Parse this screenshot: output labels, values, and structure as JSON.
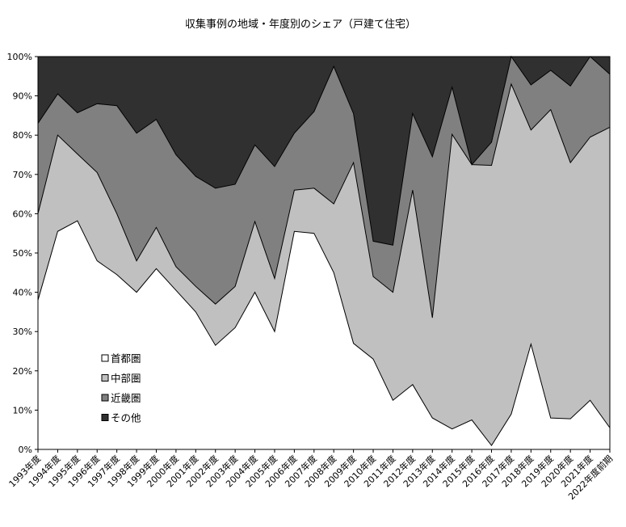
{
  "chart_data": {
    "type": "area",
    "stacked": true,
    "title": "収集事例の地域・年度別のシェア（戸建て住宅）",
    "xlabel": "",
    "ylabel": "",
    "ylim": [
      0,
      100
    ],
    "y_ticks": [
      "0%",
      "10%",
      "20%",
      "30%",
      "40%",
      "50%",
      "60%",
      "70%",
      "80%",
      "90%",
      "100%"
    ],
    "categories": [
      "1993年度",
      "1994年度",
      "1995年度",
      "1996年度",
      "1997年度",
      "1998年度",
      "1999年度",
      "2000年度",
      "2001年度",
      "2002年度",
      "2003年度",
      "2004年度",
      "2005年度",
      "2006年度",
      "2007年度",
      "2008年度",
      "2009年度",
      "2010年度",
      "2011年度",
      "2012年度",
      "2013年度",
      "2014年度",
      "2015年度",
      "2016年度",
      "2017年度",
      "2018年度",
      "2019年度",
      "2020年度",
      "2021年度",
      "2022年度前期"
    ],
    "grid": false,
    "legend_position": "bottom-left (inside plot)",
    "series": [
      {
        "name": "首都圏",
        "color": "#ffffff",
        "values": [
          38,
          55.5,
          58.2,
          48,
          44.5,
          40,
          46,
          40.5,
          35,
          26.5,
          31,
          40,
          30,
          55.5,
          55,
          45,
          27,
          23,
          12.5,
          16.5,
          8,
          5.2,
          7.5,
          1,
          9,
          26.8,
          8,
          7.8,
          12.5,
          5.5
        ]
      },
      {
        "name": "中部圏",
        "color": "#c0c0c0",
        "values": [
          22,
          24.5,
          17,
          22.5,
          15.5,
          8,
          10.5,
          6,
          6.5,
          10.5,
          10.5,
          18,
          13.5,
          10.5,
          11.5,
          17.5,
          46,
          21,
          27.5,
          49.5,
          25.5,
          75,
          65,
          71.3,
          84,
          54.5,
          78.5,
          65.2,
          67,
          76.5
        ]
      },
      {
        "name": "近畿圏",
        "color": "#808080",
        "values": [
          23,
          10.5,
          10.5,
          17.5,
          27.5,
          32.5,
          27.5,
          28.5,
          28,
          29.5,
          26,
          19.5,
          28.5,
          14.5,
          19.5,
          35,
          12.5,
          9,
          12,
          19.5,
          41,
          12,
          0,
          5.9,
          7,
          11.5,
          10,
          19.5,
          20.5,
          13.5
        ]
      },
      {
        "name": "その他",
        "color": "#303030",
        "values": [
          17,
          9.5,
          14.3,
          12,
          12.5,
          19.5,
          16,
          25,
          30.5,
          33.5,
          32.5,
          22.5,
          28,
          19.5,
          14,
          2.5,
          14.5,
          47,
          48,
          14.5,
          25.5,
          7.8,
          27.5,
          21.8,
          0,
          7.2,
          3.5,
          7.5,
          0,
          4.5
        ]
      }
    ]
  }
}
